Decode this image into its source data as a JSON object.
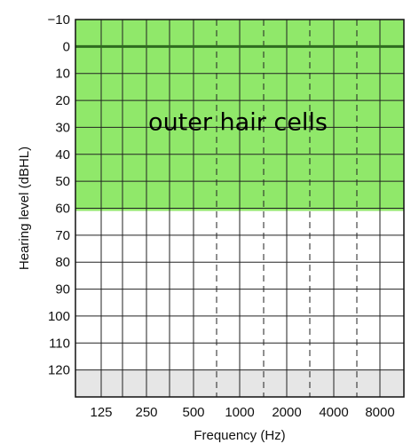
{
  "chart_data": {
    "type": "audiogram",
    "xlabel": "Frequency (Hz)",
    "ylabel": "Hearing level (dBHL)",
    "x_ticks": [
      "125",
      "250",
      "500",
      "1000",
      "2000",
      "4000",
      "8000"
    ],
    "x_interoctave_dashed": [
      "750",
      "1500",
      "3000",
      "6000"
    ],
    "y_ticks": [
      -10,
      0,
      10,
      20,
      30,
      40,
      50,
      60,
      70,
      80,
      90,
      100,
      110,
      120
    ],
    "ylim": [
      -10,
      130
    ],
    "y_inverted": true,
    "reference_line_db": 0,
    "regions": [
      {
        "label": "outer hair cells",
        "from_db": -10,
        "to_db": 61,
        "color": "#90e86a"
      },
      {
        "label": "",
        "from_db": 120,
        "to_db": 130,
        "color": "#e6e6e6"
      }
    ],
    "grid": true
  }
}
